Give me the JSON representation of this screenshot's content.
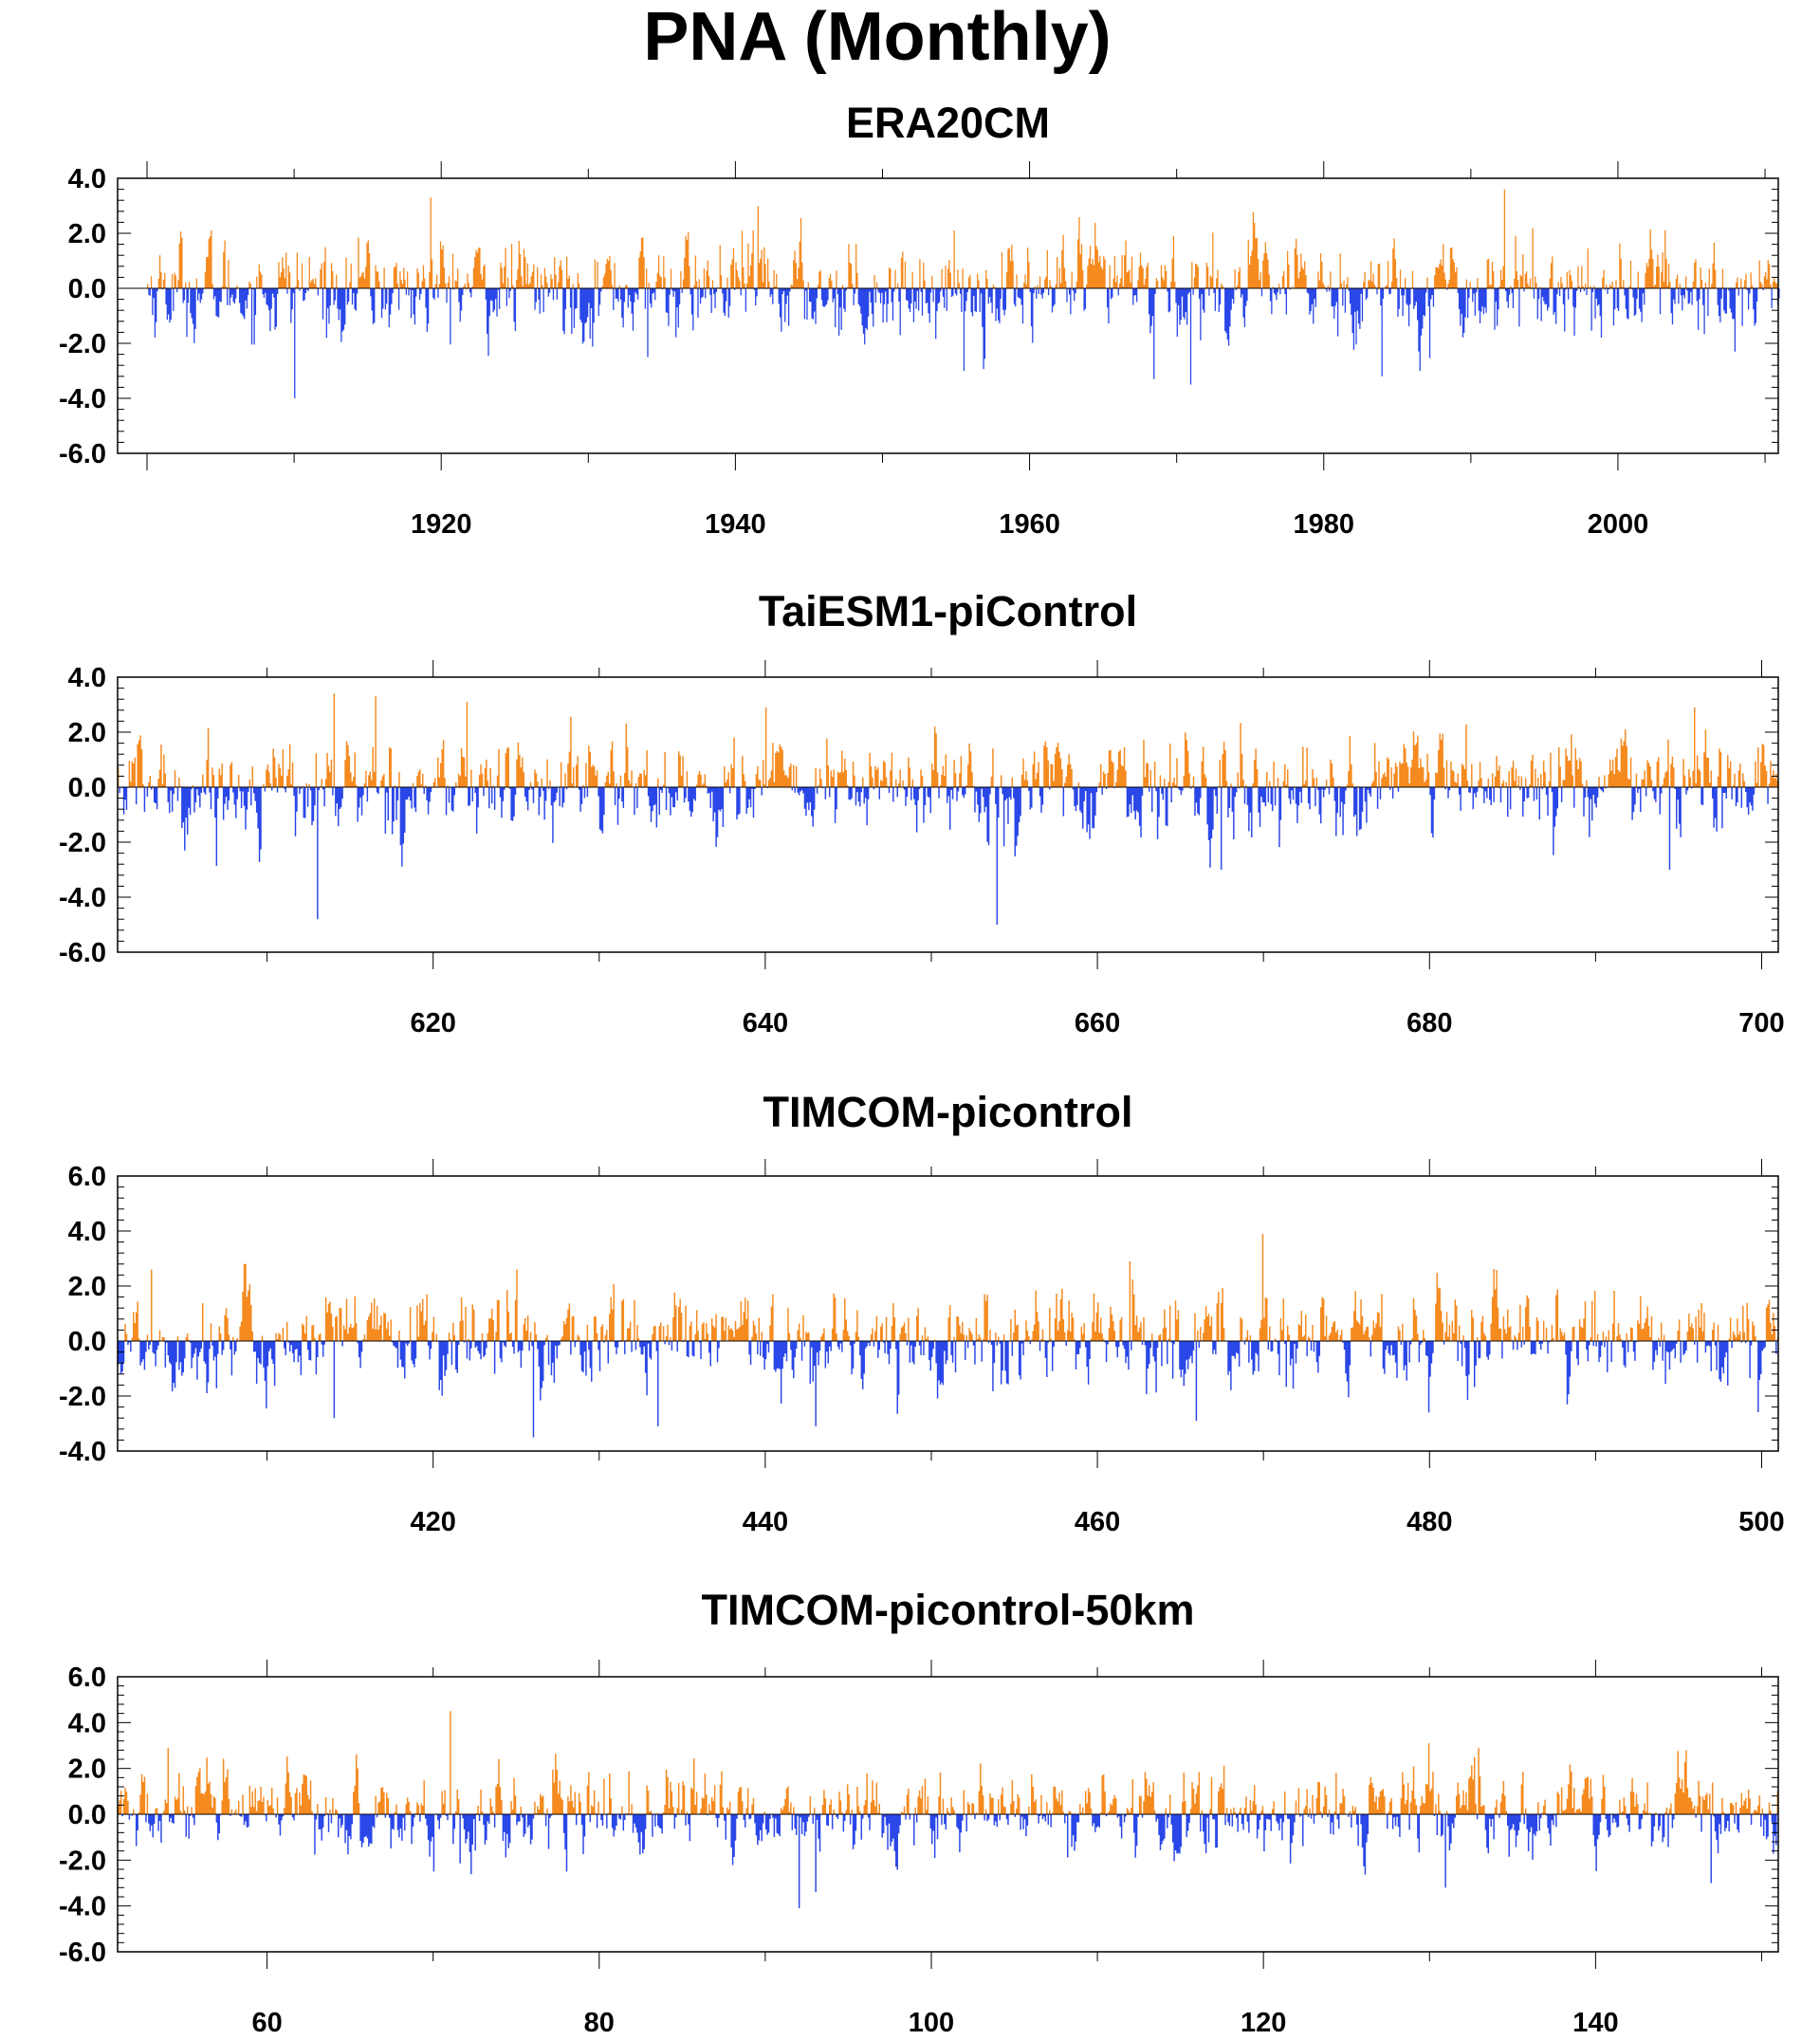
{
  "title": "PNA (Monthly)",
  "colors": {
    "positive": "#f58a1f",
    "negative": "#2a47e8",
    "axis": "#000000"
  },
  "chart_data": [
    {
      "type": "bar",
      "title": "ERA20CM",
      "x_range": [
        1900,
        2010
      ],
      "xlim": [
        1898,
        2010.9
      ],
      "x_ticks": [
        1920,
        1940,
        1960,
        1980,
        2000
      ],
      "x_tick_labels": [
        "1920",
        "1940",
        "1960",
        "1980",
        "2000"
      ],
      "ylim": [
        -6,
        4
      ],
      "y_ticks": [
        4,
        2,
        0,
        -2,
        -4,
        -6
      ],
      "y_tick_labels": [
        "4.0",
        "2.0",
        "0.0",
        "-2.0",
        "-4.0",
        "-6.0"
      ],
      "ylabel": "",
      "n_months": 1332,
      "series": [
        {
          "values_note": "monthly PNA index",
          "extremes": {
            "max": 3.6,
            "min": -4.0
          }
        }
      ]
    },
    {
      "type": "bar",
      "title": "TaiESM1-piControl",
      "x_range": [
        601,
        700
      ],
      "xlim": [
        601,
        701
      ],
      "x_ticks": [
        620,
        640,
        660,
        680,
        700
      ],
      "x_tick_labels": [
        "620",
        "640",
        "660",
        "680",
        "700"
      ],
      "ylim": [
        -6,
        4
      ],
      "y_ticks": [
        4,
        2,
        0,
        -2,
        -4,
        -6
      ],
      "y_tick_labels": [
        "4.0",
        "2.0",
        "0.0",
        "-2.0",
        "-4.0",
        "-6.0"
      ],
      "ylabel": "",
      "n_months": 1200,
      "series": [
        {
          "values_note": "monthly PNA index",
          "extremes": {
            "max": 3.4,
            "min": -5.0
          }
        }
      ]
    },
    {
      "type": "bar",
      "title": "TIMCOM-picontrol",
      "x_range": [
        401,
        500
      ],
      "xlim": [
        401,
        501
      ],
      "x_ticks": [
        420,
        440,
        460,
        480,
        500
      ],
      "x_tick_labels": [
        "420",
        "440",
        "460",
        "480",
        "500"
      ],
      "ylim": [
        -4,
        6
      ],
      "y_ticks": [
        6,
        4,
        2,
        0,
        -2,
        -4
      ],
      "y_tick_labels": [
        "6.0",
        "4.0",
        "2.0",
        "0.0",
        "-2.0",
        "-4.0"
      ],
      "ylabel": "",
      "n_months": 1200,
      "series": [
        {
          "values_note": "monthly PNA index",
          "extremes": {
            "max": 3.9,
            "min": -3.5
          }
        }
      ]
    },
    {
      "type": "bar",
      "title": "TIMCOM-picontrol-50km",
      "x_range": [
        51,
        150
      ],
      "xlim": [
        51,
        151
      ],
      "x_ticks": [
        60,
        80,
        100,
        120,
        140
      ],
      "x_tick_labels": [
        "60",
        "80",
        "100",
        "120",
        "140"
      ],
      "ylim": [
        -6,
        6
      ],
      "y_ticks": [
        6,
        4,
        2,
        0,
        -2,
        -4,
        -6
      ],
      "y_tick_labels": [
        "6.0",
        "4.0",
        "2.0",
        "0.0",
        "-2.0",
        "-4.0",
        "-6.0"
      ],
      "ylabel": "",
      "n_months": 1200,
      "series": [
        {
          "values_note": "monthly PNA index",
          "extremes": {
            "max": 4.5,
            "min": -4.1
          }
        }
      ]
    }
  ]
}
